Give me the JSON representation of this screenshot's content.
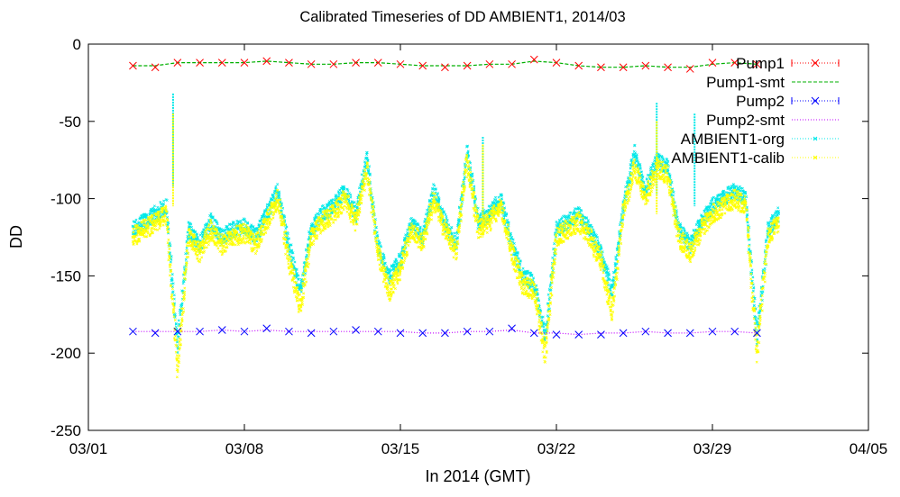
{
  "chart_data": {
    "type": "line",
    "title": "Calibrated Timeseries of DD AMBIENT1, 2014/03",
    "xlabel": "In 2014 (GMT)",
    "ylabel": "DD",
    "xlim": [
      "2014-03-01",
      "2014-04-05"
    ],
    "ylim": [
      -250,
      0
    ],
    "x_ticks": [
      {
        "date": "2014-03-01",
        "label": "03/01"
      },
      {
        "date": "2014-03-08",
        "label": "03/08"
      },
      {
        "date": "2014-03-15",
        "label": "03/15"
      },
      {
        "date": "2014-03-22",
        "label": "03/22"
      },
      {
        "date": "2014-03-29",
        "label": "03/29"
      },
      {
        "date": "2014-04-05",
        "label": "04/05"
      }
    ],
    "y_ticks": [
      0,
      -50,
      -100,
      -150,
      -200,
      -250
    ],
    "grid": false,
    "legend_position": "top-right",
    "series": [
      {
        "name": "Pump1",
        "color": "#ff0000",
        "style": "points-x",
        "x": [
          "2014-03-03",
          "2014-03-04",
          "2014-03-05",
          "2014-03-06",
          "2014-03-07",
          "2014-03-08",
          "2014-03-09",
          "2014-03-10",
          "2014-03-11",
          "2014-03-12",
          "2014-03-13",
          "2014-03-14",
          "2014-03-15",
          "2014-03-16",
          "2014-03-17",
          "2014-03-18",
          "2014-03-19",
          "2014-03-20",
          "2014-03-21",
          "2014-03-22",
          "2014-03-23",
          "2014-03-24",
          "2014-03-25",
          "2014-03-26",
          "2014-03-27",
          "2014-03-28",
          "2014-03-29",
          "2014-03-30",
          "2014-03-31"
        ],
        "y": [
          -14,
          -15,
          -12,
          -12,
          -12,
          -12,
          -11,
          -12,
          -13,
          -13,
          -12,
          -12,
          -13,
          -14,
          -15,
          -14,
          -13,
          -13,
          -10,
          -12,
          -14,
          -15,
          -15,
          -14,
          -15,
          -16,
          -12,
          -12,
          -13
        ]
      },
      {
        "name": "Pump1-smt",
        "color": "#00b000",
        "style": "dashed-line",
        "x": [
          "2014-03-03",
          "2014-03-04",
          "2014-03-05",
          "2014-03-06",
          "2014-03-07",
          "2014-03-08",
          "2014-03-09",
          "2014-03-10",
          "2014-03-11",
          "2014-03-12",
          "2014-03-13",
          "2014-03-14",
          "2014-03-15",
          "2014-03-16",
          "2014-03-17",
          "2014-03-18",
          "2014-03-19",
          "2014-03-20",
          "2014-03-21",
          "2014-03-22",
          "2014-03-23",
          "2014-03-24",
          "2014-03-25",
          "2014-03-26",
          "2014-03-27",
          "2014-03-28",
          "2014-03-29",
          "2014-03-30",
          "2014-03-31"
        ],
        "y": [
          -14,
          -14,
          -12,
          -12,
          -12,
          -12,
          -11,
          -12,
          -13,
          -13,
          -12,
          -12,
          -13,
          -14,
          -14,
          -14,
          -13,
          -13,
          -11,
          -12,
          -14,
          -15,
          -15,
          -14,
          -15,
          -15,
          -13,
          -12,
          -13
        ]
      },
      {
        "name": "Pump2",
        "color": "#0000ff",
        "style": "points-x",
        "x": [
          "2014-03-03",
          "2014-03-04",
          "2014-03-05",
          "2014-03-06",
          "2014-03-07",
          "2014-03-08",
          "2014-03-09",
          "2014-03-10",
          "2014-03-11",
          "2014-03-12",
          "2014-03-13",
          "2014-03-14",
          "2014-03-15",
          "2014-03-16",
          "2014-03-17",
          "2014-03-18",
          "2014-03-19",
          "2014-03-20",
          "2014-03-21",
          "2014-03-22",
          "2014-03-23",
          "2014-03-24",
          "2014-03-25",
          "2014-03-26",
          "2014-03-27",
          "2014-03-28",
          "2014-03-29",
          "2014-03-30",
          "2014-03-31"
        ],
        "y": [
          -186,
          -187,
          -186,
          -186,
          -185,
          -186,
          -184,
          -186,
          -187,
          -186,
          -185,
          -186,
          -187,
          -187,
          -187,
          -186,
          -186,
          -184,
          -187,
          -188,
          -188,
          -188,
          -187,
          -186,
          -187,
          -187,
          -186,
          -186,
          -187
        ]
      },
      {
        "name": "Pump2-smt",
        "color": "#c000ff",
        "style": "dotted-line",
        "x": [
          "2014-03-03",
          "2014-03-04",
          "2014-03-05",
          "2014-03-06",
          "2014-03-07",
          "2014-03-08",
          "2014-03-09",
          "2014-03-10",
          "2014-03-11",
          "2014-03-12",
          "2014-03-13",
          "2014-03-14",
          "2014-03-15",
          "2014-03-16",
          "2014-03-17",
          "2014-03-18",
          "2014-03-19",
          "2014-03-20",
          "2014-03-21",
          "2014-03-22",
          "2014-03-23",
          "2014-03-24",
          "2014-03-25",
          "2014-03-26",
          "2014-03-27",
          "2014-03-28",
          "2014-03-29",
          "2014-03-30",
          "2014-03-31"
        ],
        "y": [
          -186,
          -186,
          -186,
          -186,
          -185,
          -186,
          -185,
          -186,
          -186,
          -186,
          -186,
          -186,
          -186,
          -187,
          -187,
          -186,
          -186,
          -185,
          -187,
          -187,
          -188,
          -187,
          -187,
          -186,
          -187,
          -187,
          -186,
          -186,
          -187
        ]
      },
      {
        "name": "AMBIENT1-org",
        "color": "#00e8e8",
        "style": "points-dense",
        "x": [
          "2014-03-03",
          "2014-03-04",
          "2014-03-04T12:00",
          "2014-03-05",
          "2014-03-05T12:00",
          "2014-03-06",
          "2014-03-06T12:00",
          "2014-03-07",
          "2014-03-07T12:00",
          "2014-03-08",
          "2014-03-08T12:00",
          "2014-03-09",
          "2014-03-09T12:00",
          "2014-03-10",
          "2014-03-10T12:00",
          "2014-03-11",
          "2014-03-11T12:00",
          "2014-03-12",
          "2014-03-12T12:00",
          "2014-03-13",
          "2014-03-13T12:00",
          "2014-03-14",
          "2014-03-14T12:00",
          "2014-03-15",
          "2014-03-15T12:00",
          "2014-03-16",
          "2014-03-16T12:00",
          "2014-03-17",
          "2014-03-17T12:00",
          "2014-03-18",
          "2014-03-18T12:00",
          "2014-03-19",
          "2014-03-19T12:00",
          "2014-03-20",
          "2014-03-20T12:00",
          "2014-03-21",
          "2014-03-21T12:00",
          "2014-03-22",
          "2014-03-22T12:00",
          "2014-03-23",
          "2014-03-23T12:00",
          "2014-03-24",
          "2014-03-24T12:00",
          "2014-03-25",
          "2014-03-25T12:00",
          "2014-03-26",
          "2014-03-26T12:00",
          "2014-03-27",
          "2014-03-27T12:00",
          "2014-03-28",
          "2014-03-28T12:00",
          "2014-03-29",
          "2014-03-29T12:00",
          "2014-03-30",
          "2014-03-30T12:00",
          "2014-03-31",
          "2014-03-31T12:00",
          "2014-04-01"
        ],
        "y": [
          -120,
          -110,
          -105,
          -195,
          -120,
          -130,
          -115,
          -125,
          -120,
          -118,
          -125,
          -110,
          -95,
          -130,
          -160,
          -120,
          -110,
          -105,
          -95,
          -110,
          -75,
          -130,
          -150,
          -140,
          -115,
          -125,
          -95,
          -115,
          -130,
          -70,
          -115,
          -110,
          -100,
          -130,
          -150,
          -155,
          -190,
          -120,
          -115,
          -110,
          -120,
          -135,
          -160,
          -105,
          -70,
          -95,
          -75,
          -80,
          -120,
          -130,
          -115,
          -105,
          -100,
          -95,
          -100,
          -190,
          -120,
          -110
        ]
      },
      {
        "name": "AMBIENT1-calib",
        "color": "#ffff00",
        "style": "points-dense",
        "x": [
          "2014-03-03",
          "2014-03-04",
          "2014-03-04T12:00",
          "2014-03-05",
          "2014-03-05T12:00",
          "2014-03-06",
          "2014-03-06T12:00",
          "2014-03-07",
          "2014-03-07T12:00",
          "2014-03-08",
          "2014-03-08T12:00",
          "2014-03-09",
          "2014-03-09T12:00",
          "2014-03-10",
          "2014-03-10T12:00",
          "2014-03-11",
          "2014-03-11T12:00",
          "2014-03-12",
          "2014-03-12T12:00",
          "2014-03-13",
          "2014-03-13T12:00",
          "2014-03-14",
          "2014-03-14T12:00",
          "2014-03-15",
          "2014-03-15T12:00",
          "2014-03-16",
          "2014-03-16T12:00",
          "2014-03-17",
          "2014-03-17T12:00",
          "2014-03-18",
          "2014-03-18T12:00",
          "2014-03-19",
          "2014-03-19T12:00",
          "2014-03-20",
          "2014-03-20T12:00",
          "2014-03-21",
          "2014-03-21T12:00",
          "2014-03-22",
          "2014-03-22T12:00",
          "2014-03-23",
          "2014-03-23T12:00",
          "2014-03-24",
          "2014-03-24T12:00",
          "2014-03-25",
          "2014-03-25T12:00",
          "2014-03-26",
          "2014-03-26T12:00",
          "2014-03-27",
          "2014-03-27T12:00",
          "2014-03-28",
          "2014-03-28T12:00",
          "2014-03-29",
          "2014-03-29T12:00",
          "2014-03-30",
          "2014-03-30T12:00",
          "2014-03-31",
          "2014-03-31T12:00",
          "2014-04-01"
        ],
        "y": [
          -125,
          -115,
          -110,
          -210,
          -125,
          -135,
          -120,
          -130,
          -125,
          -122,
          -130,
          -115,
          -100,
          -140,
          -170,
          -125,
          -115,
          -110,
          -100,
          -115,
          -80,
          -135,
          -160,
          -145,
          -120,
          -130,
          -100,
          -120,
          -135,
          -75,
          -120,
          -115,
          -105,
          -135,
          -155,
          -160,
          -200,
          -125,
          -120,
          -115,
          -125,
          -140,
          -175,
          -110,
          -80,
          -100,
          -80,
          -85,
          -125,
          -135,
          -120,
          -110,
          -105,
          -100,
          -105,
          -200,
          -125,
          -115
        ]
      }
    ]
  }
}
